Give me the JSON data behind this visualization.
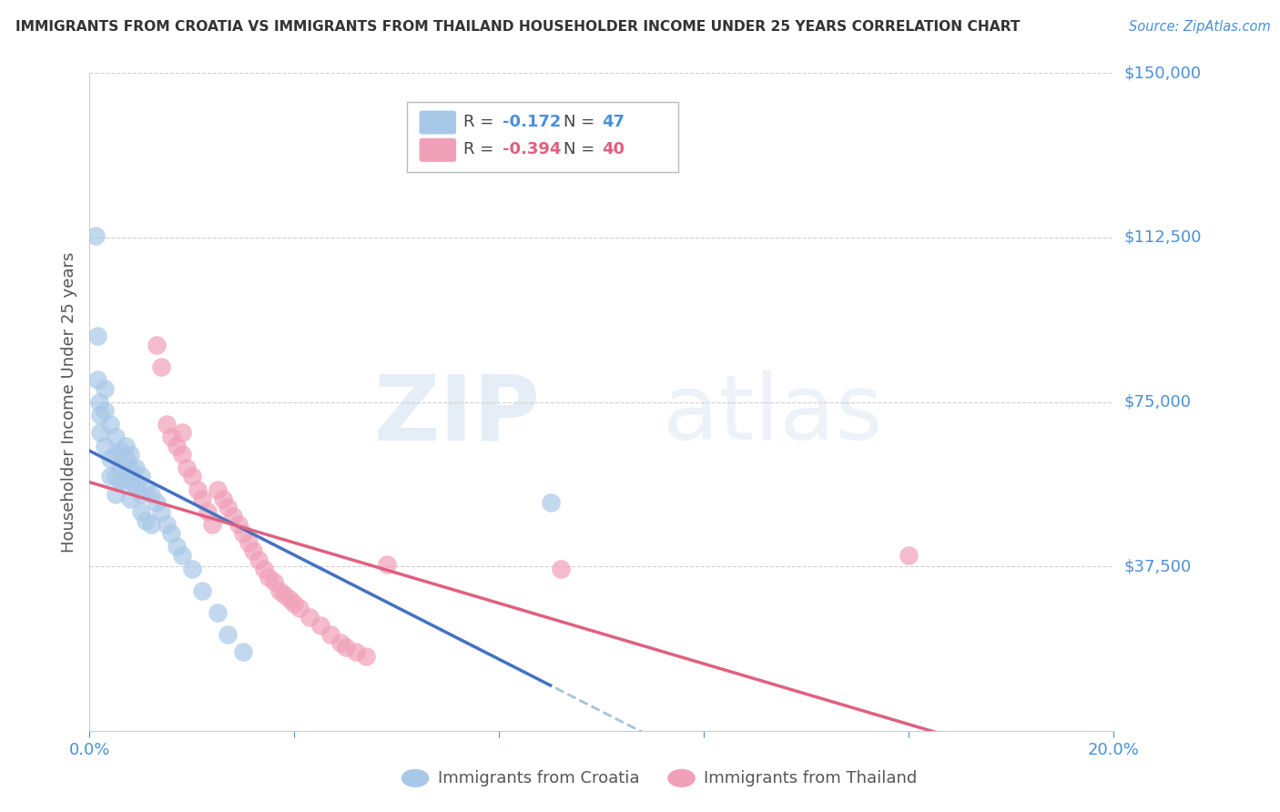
{
  "title": "IMMIGRANTS FROM CROATIA VS IMMIGRANTS FROM THAILAND HOUSEHOLDER INCOME UNDER 25 YEARS CORRELATION CHART",
  "source": "Source: ZipAtlas.com",
  "ylabel": "Householder Income Under 25 years",
  "xlim": [
    0.0,
    0.2
  ],
  "ylim": [
    0,
    150000
  ],
  "croatia_color": "#a8c8e8",
  "thailand_color": "#f0a0b8",
  "croatia_line_color": "#4472c4",
  "thailand_line_color": "#e06080",
  "dashed_line_color": "#a0bcd8",
  "watermark_zip": "ZIP",
  "watermark_atlas": "atlas",
  "background_color": "#ffffff",
  "ytick_vals": [
    37500,
    75000,
    112500,
    150000
  ],
  "ytick_labels": [
    "$37,500",
    "$75,000",
    "$112,500",
    "$150,000"
  ],
  "croatia_scatter_x": [
    0.0012,
    0.0015,
    0.0018,
    0.002,
    0.002,
    0.003,
    0.003,
    0.003,
    0.004,
    0.004,
    0.004,
    0.005,
    0.005,
    0.005,
    0.005,
    0.006,
    0.006,
    0.006,
    0.007,
    0.007,
    0.007,
    0.008,
    0.008,
    0.008,
    0.008,
    0.009,
    0.009,
    0.01,
    0.01,
    0.01,
    0.011,
    0.011,
    0.012,
    0.012,
    0.013,
    0.014,
    0.015,
    0.016,
    0.017,
    0.018,
    0.02,
    0.022,
    0.025,
    0.027,
    0.03,
    0.09,
    0.0015
  ],
  "croatia_scatter_y": [
    113000,
    80000,
    75000,
    72000,
    68000,
    78000,
    73000,
    65000,
    70000,
    62000,
    58000,
    67000,
    63000,
    58000,
    54000,
    64000,
    60000,
    57000,
    65000,
    62000,
    57000,
    63000,
    60000,
    57000,
    53000,
    60000,
    56000,
    58000,
    54000,
    50000,
    55000,
    48000,
    54000,
    47000,
    52000,
    50000,
    47000,
    45000,
    42000,
    40000,
    37000,
    32000,
    27000,
    22000,
    18000,
    52000,
    90000
  ],
  "thailand_scatter_x": [
    0.013,
    0.014,
    0.015,
    0.016,
    0.017,
    0.018,
    0.018,
    0.019,
    0.02,
    0.021,
    0.022,
    0.023,
    0.024,
    0.025,
    0.026,
    0.027,
    0.028,
    0.029,
    0.03,
    0.031,
    0.032,
    0.033,
    0.034,
    0.035,
    0.036,
    0.037,
    0.038,
    0.039,
    0.04,
    0.041,
    0.043,
    0.045,
    0.047,
    0.049,
    0.05,
    0.052,
    0.054,
    0.058,
    0.092,
    0.16
  ],
  "thailand_scatter_y": [
    88000,
    83000,
    70000,
    67000,
    65000,
    63000,
    68000,
    60000,
    58000,
    55000,
    53000,
    50000,
    47000,
    55000,
    53000,
    51000,
    49000,
    47000,
    45000,
    43000,
    41000,
    39000,
    37000,
    35000,
    34000,
    32000,
    31000,
    30000,
    29000,
    28000,
    26000,
    24000,
    22000,
    20000,
    19000,
    18000,
    17000,
    38000,
    37000,
    40000
  ]
}
